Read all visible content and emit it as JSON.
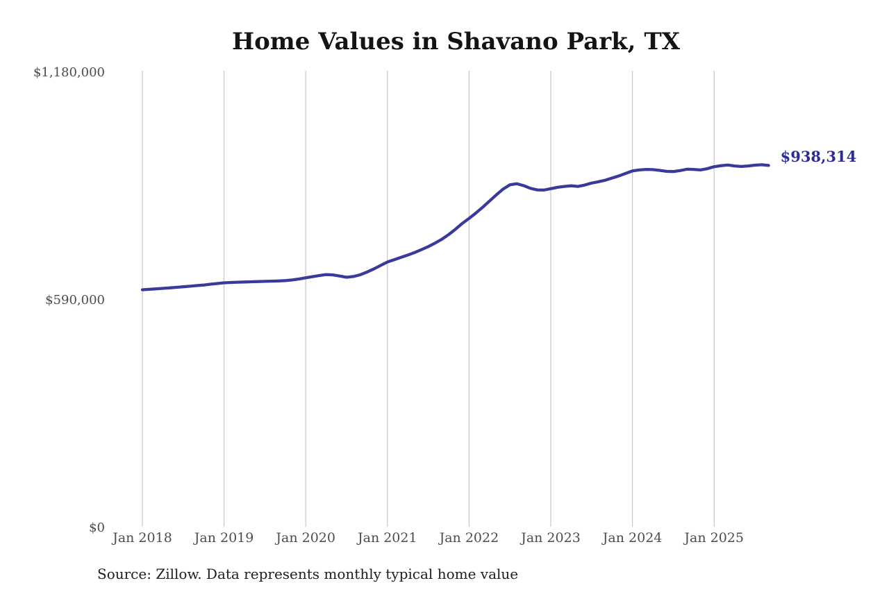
{
  "chart_data": {
    "type": "line",
    "title": "Home Values in Shavano Park, TX",
    "source": "Source: Zillow. Data represents monthly typical home value",
    "series_name": "Monthly typical home value",
    "end_label": "$938,314",
    "latest_value": 938314,
    "ylim": [
      0,
      1180000
    ],
    "grid": "vertical-only",
    "legend": "none",
    "line_color": "#3a3a9c",
    "end_label_color": "#2c2c99",
    "grid_color": "#bdbdbd",
    "axis_text_color": "#4c4c4c",
    "y_ticks": [
      {
        "value": 0,
        "label": "$0"
      },
      {
        "value": 590000,
        "label": "$590,000"
      },
      {
        "value": 1180000,
        "label": "$1,180,000"
      }
    ],
    "x_ticks": [
      {
        "month_index": 0,
        "label": "Jan 2018"
      },
      {
        "month_index": 12,
        "label": "Jan 2019"
      },
      {
        "month_index": 24,
        "label": "Jan 2020"
      },
      {
        "month_index": 36,
        "label": "Jan 2021"
      },
      {
        "month_index": 48,
        "label": "Jan 2022"
      },
      {
        "month_index": 60,
        "label": "Jan 2023"
      },
      {
        "month_index": 72,
        "label": "Jan 2024"
      },
      {
        "month_index": 84,
        "label": "Jan 2025"
      }
    ],
    "x": [
      "2018-01",
      "2018-02",
      "2018-03",
      "2018-04",
      "2018-05",
      "2018-06",
      "2018-07",
      "2018-08",
      "2018-09",
      "2018-10",
      "2018-11",
      "2018-12",
      "2019-01",
      "2019-02",
      "2019-03",
      "2019-04",
      "2019-05",
      "2019-06",
      "2019-07",
      "2019-08",
      "2019-09",
      "2019-10",
      "2019-11",
      "2019-12",
      "2020-01",
      "2020-02",
      "2020-03",
      "2020-04",
      "2020-05",
      "2020-06",
      "2020-07",
      "2020-08",
      "2020-09",
      "2020-10",
      "2020-11",
      "2020-12",
      "2021-01",
      "2021-02",
      "2021-03",
      "2021-04",
      "2021-05",
      "2021-06",
      "2021-07",
      "2021-08",
      "2021-09",
      "2021-10",
      "2021-11",
      "2021-12",
      "2022-01",
      "2022-02",
      "2022-03",
      "2022-04",
      "2022-05",
      "2022-06",
      "2022-07",
      "2022-08",
      "2022-09",
      "2022-10",
      "2022-11",
      "2022-12",
      "2023-01",
      "2023-02",
      "2023-03",
      "2023-04",
      "2023-05",
      "2023-06",
      "2023-07",
      "2023-08",
      "2023-09",
      "2023-10",
      "2023-11",
      "2023-12",
      "2024-01",
      "2024-02",
      "2024-03",
      "2024-04",
      "2024-05",
      "2024-06",
      "2024-07",
      "2024-08",
      "2024-09",
      "2024-10",
      "2024-11",
      "2024-12",
      "2025-01",
      "2025-02",
      "2025-03",
      "2025-04",
      "2025-05",
      "2025-06",
      "2025-07",
      "2025-08",
      "2025-09"
    ],
    "values": [
      616000,
      617200,
      618400,
      619600,
      621000,
      622400,
      623800,
      625200,
      626800,
      628400,
      630400,
      632300,
      634000,
      635000,
      635700,
      636300,
      636800,
      637300,
      637800,
      638300,
      639000,
      639900,
      641500,
      644000,
      647000,
      650000,
      653000,
      655500,
      654500,
      651500,
      648500,
      650500,
      655000,
      662000,
      670000,
      679000,
      688000,
      694000,
      700000,
      706000,
      712500,
      720000,
      728000,
      737000,
      747000,
      759000,
      773000,
      788000,
      801000,
      815000,
      830000,
      846000,
      862000,
      877000,
      888000,
      891000,
      886000,
      879000,
      875000,
      874500,
      878000,
      881500,
      884000,
      885500,
      884000,
      887500,
      892500,
      896000,
      900000,
      905500,
      911000,
      917500,
      924000,
      926500,
      928000,
      927500,
      925500,
      923000,
      922500,
      925000,
      928500,
      928000,
      926500,
      930000,
      935000,
      937500,
      939500,
      937000,
      935500,
      937000,
      939000,
      940000,
      938314
    ]
  }
}
